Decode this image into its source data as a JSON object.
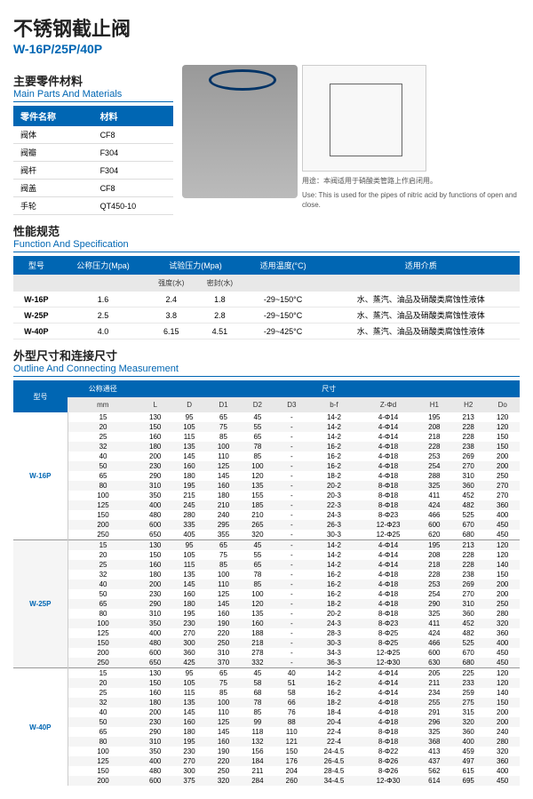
{
  "title_cn": "不锈钢截止阀",
  "title_sub": "W-16P/25P/40P",
  "sec1_cn": "主要零件材料",
  "sec1_en": "Main Parts And Materials",
  "mat": {
    "h1": "零件名称",
    "h2": "材料",
    "rows": [
      [
        "阀体",
        "CF8"
      ],
      [
        "阀瓣",
        "F304"
      ],
      [
        "阀杆",
        "F304"
      ],
      [
        "阀盖",
        "CF8"
      ],
      [
        "手轮",
        "QT450-10"
      ]
    ]
  },
  "use_cn": "用途：本阀适用于硝酸类管路上作启闭用。",
  "use_en": "Use: This is used for the pipes of nitric acid by functions of open and close.",
  "sec2_cn": "性能规范",
  "sec2_en": "Function And Specification",
  "spec": {
    "h": [
      "型号",
      "公称压力(Mpa)",
      "试验压力(Mpa)",
      "",
      "适用温度(°C)",
      "适用介质"
    ],
    "sub": [
      "",
      "",
      "强度(水)",
      "密封(水)",
      "",
      ""
    ],
    "rows": [
      [
        "W-16P",
        "1.6",
        "2.4",
        "1.8",
        "-29~150°C",
        "水、蒸汽、油品及硝酸类腐蚀性液体"
      ],
      [
        "W-25P",
        "2.5",
        "3.8",
        "2.8",
        "-29~150°C",
        "水、蒸汽、油品及硝酸类腐蚀性液体"
      ],
      [
        "W-40P",
        "4.0",
        "6.15",
        "4.51",
        "-29~425°C",
        "水、蒸汽、油品及硝酸类腐蚀性液体"
      ]
    ]
  },
  "sec3_cn": "外型尺寸和连接尺寸",
  "sec3_en": "Outline And Connecting Measurement",
  "dim": {
    "h1": "型号",
    "h2": "公称通径",
    "h3": "尺寸",
    "cols": [
      "mm",
      "L",
      "D",
      "D1",
      "D2",
      "D3",
      "b-f",
      "Z-Φd",
      "H1",
      "H2",
      "Do"
    ],
    "groups": [
      {
        "model": "W-16P",
        "rows": [
          [
            "15",
            "130",
            "95",
            "65",
            "45",
            "-",
            "14-2",
            "4-Φ14",
            "195",
            "213",
            "120"
          ],
          [
            "20",
            "150",
            "105",
            "75",
            "55",
            "-",
            "14-2",
            "4-Φ14",
            "208",
            "228",
            "120"
          ],
          [
            "25",
            "160",
            "115",
            "85",
            "65",
            "-",
            "14-2",
            "4-Φ14",
            "218",
            "228",
            "150"
          ],
          [
            "32",
            "180",
            "135",
            "100",
            "78",
            "-",
            "16-2",
            "4-Φ18",
            "228",
            "238",
            "150"
          ],
          [
            "40",
            "200",
            "145",
            "110",
            "85",
            "-",
            "16-2",
            "4-Φ18",
            "253",
            "269",
            "200"
          ],
          [
            "50",
            "230",
            "160",
            "125",
            "100",
            "-",
            "16-2",
            "4-Φ18",
            "254",
            "270",
            "200"
          ],
          [
            "65",
            "290",
            "180",
            "145",
            "120",
            "-",
            "18-2",
            "4-Φ18",
            "288",
            "310",
            "250"
          ],
          [
            "80",
            "310",
            "195",
            "160",
            "135",
            "-",
            "20-2",
            "8-Φ18",
            "325",
            "360",
            "270"
          ],
          [
            "100",
            "350",
            "215",
            "180",
            "155",
            "-",
            "20-3",
            "8-Φ18",
            "411",
            "452",
            "270"
          ],
          [
            "125",
            "400",
            "245",
            "210",
            "185",
            "-",
            "22-3",
            "8-Φ18",
            "424",
            "482",
            "360"
          ],
          [
            "150",
            "480",
            "280",
            "240",
            "210",
            "-",
            "24-3",
            "8-Φ23",
            "466",
            "525",
            "400"
          ],
          [
            "200",
            "600",
            "335",
            "295",
            "265",
            "-",
            "26-3",
            "12-Φ23",
            "600",
            "670",
            "450"
          ],
          [
            "250",
            "650",
            "405",
            "355",
            "320",
            "-",
            "30-3",
            "12-Φ25",
            "620",
            "680",
            "450"
          ]
        ]
      },
      {
        "model": "W-25P",
        "rows": [
          [
            "15",
            "130",
            "95",
            "65",
            "45",
            "-",
            "14-2",
            "4-Φ14",
            "195",
            "213",
            "120"
          ],
          [
            "20",
            "150",
            "105",
            "75",
            "55",
            "-",
            "14-2",
            "4-Φ14",
            "208",
            "228",
            "120"
          ],
          [
            "25",
            "160",
            "115",
            "85",
            "65",
            "-",
            "14-2",
            "4-Φ14",
            "218",
            "228",
            "140"
          ],
          [
            "32",
            "180",
            "135",
            "100",
            "78",
            "-",
            "16-2",
            "4-Φ18",
            "228",
            "238",
            "150"
          ],
          [
            "40",
            "200",
            "145",
            "110",
            "85",
            "-",
            "16-2",
            "4-Φ18",
            "253",
            "269",
            "200"
          ],
          [
            "50",
            "230",
            "160",
            "125",
            "100",
            "-",
            "16-2",
            "4-Φ18",
            "254",
            "270",
            "200"
          ],
          [
            "65",
            "290",
            "180",
            "145",
            "120",
            "-",
            "18-2",
            "4-Φ18",
            "290",
            "310",
            "250"
          ],
          [
            "80",
            "310",
            "195",
            "160",
            "135",
            "-",
            "20-2",
            "8-Φ18",
            "325",
            "360",
            "280"
          ],
          [
            "100",
            "350",
            "230",
            "190",
            "160",
            "-",
            "24-3",
            "8-Φ23",
            "411",
            "452",
            "320"
          ],
          [
            "125",
            "400",
            "270",
            "220",
            "188",
            "-",
            "28-3",
            "8-Φ25",
            "424",
            "482",
            "360"
          ],
          [
            "150",
            "480",
            "300",
            "250",
            "218",
            "-",
            "30-3",
            "8-Φ25",
            "466",
            "525",
            "400"
          ],
          [
            "200",
            "600",
            "360",
            "310",
            "278",
            "-",
            "34-3",
            "12-Φ25",
            "600",
            "670",
            "450"
          ],
          [
            "250",
            "650",
            "425",
            "370",
            "332",
            "-",
            "36-3",
            "12-Φ30",
            "630",
            "680",
            "450"
          ]
        ]
      },
      {
        "model": "W-40P",
        "rows": [
          [
            "15",
            "130",
            "95",
            "65",
            "45",
            "40",
            "14-2",
            "4-Φ14",
            "205",
            "225",
            "120"
          ],
          [
            "20",
            "150",
            "105",
            "75",
            "58",
            "51",
            "16-2",
            "4-Φ14",
            "211",
            "233",
            "120"
          ],
          [
            "25",
            "160",
            "115",
            "85",
            "68",
            "58",
            "16-2",
            "4-Φ14",
            "234",
            "259",
            "140"
          ],
          [
            "32",
            "180",
            "135",
            "100",
            "78",
            "66",
            "18-2",
            "4-Φ18",
            "255",
            "275",
            "150"
          ],
          [
            "40",
            "200",
            "145",
            "110",
            "85",
            "76",
            "18-4",
            "4-Φ18",
            "291",
            "315",
            "200"
          ],
          [
            "50",
            "230",
            "160",
            "125",
            "99",
            "88",
            "20-4",
            "4-Φ18",
            "296",
            "320",
            "200"
          ],
          [
            "65",
            "290",
            "180",
            "145",
            "118",
            "110",
            "22-4",
            "8-Φ18",
            "325",
            "360",
            "240"
          ],
          [
            "80",
            "310",
            "195",
            "160",
            "132",
            "121",
            "22-4",
            "8-Φ18",
            "368",
            "400",
            "280"
          ],
          [
            "100",
            "350",
            "230",
            "190",
            "156",
            "150",
            "24-4.5",
            "8-Φ22",
            "413",
            "459",
            "320"
          ],
          [
            "125",
            "400",
            "270",
            "220",
            "184",
            "176",
            "26-4.5",
            "8-Φ26",
            "437",
            "497",
            "360"
          ],
          [
            "150",
            "480",
            "300",
            "250",
            "211",
            "204",
            "28-4.5",
            "8-Φ26",
            "562",
            "615",
            "400"
          ],
          [
            "200",
            "600",
            "375",
            "320",
            "284",
            "260",
            "34-4.5",
            "12-Φ30",
            "614",
            "695",
            "450"
          ]
        ]
      }
    ]
  }
}
